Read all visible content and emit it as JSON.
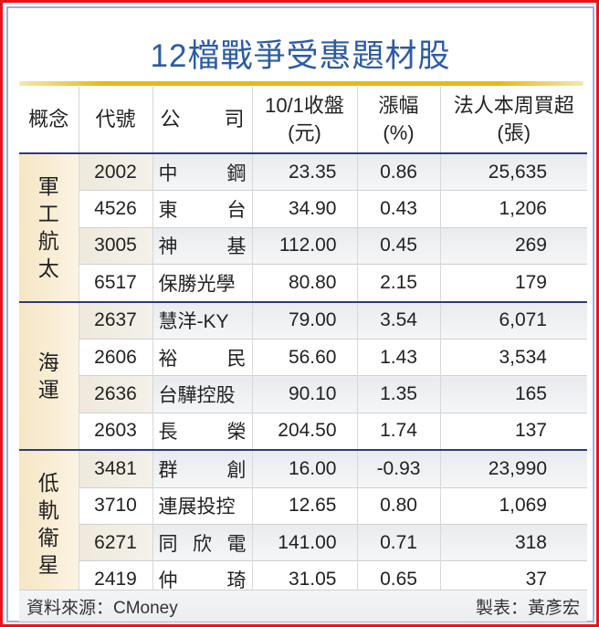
{
  "title": "12檔戰爭受惠題材股",
  "header": {
    "concept": "概念",
    "code": "代號",
    "company_left": "公",
    "company_right": "司",
    "close_line1": "10/1收盤",
    "close_line2": "(元)",
    "change_line1": "漲幅",
    "change_line2": "(%)",
    "buy_line1": "法人本周買超",
    "buy_line2": "(張)"
  },
  "groups": [
    {
      "concept": "軍工航太",
      "rows": [
        {
          "code": "2002",
          "company": [
            "中",
            "鋼"
          ],
          "close": "23.35",
          "change": "0.86",
          "buy": "25,635"
        },
        {
          "code": "4526",
          "company": [
            "東",
            "台"
          ],
          "close": "34.90",
          "change": "0.43",
          "buy": "1,206"
        },
        {
          "code": "3005",
          "company": [
            "神",
            "基"
          ],
          "close": "112.00",
          "change": "0.45",
          "buy": "269"
        },
        {
          "code": "6517",
          "company": [
            "保勝光學"
          ],
          "close": "80.80",
          "change": "2.15",
          "buy": "179"
        }
      ]
    },
    {
      "concept": "海運",
      "rows": [
        {
          "code": "2637",
          "company": [
            "慧洋-KY"
          ],
          "close": "79.00",
          "change": "3.54",
          "buy": "6,071"
        },
        {
          "code": "2606",
          "company": [
            "裕",
            "民"
          ],
          "close": "56.60",
          "change": "1.43",
          "buy": "3,534"
        },
        {
          "code": "2636",
          "company": [
            "台驊控股"
          ],
          "close": "90.10",
          "change": "1.35",
          "buy": "165"
        },
        {
          "code": "2603",
          "company": [
            "長",
            "榮"
          ],
          "close": "204.50",
          "change": "1.74",
          "buy": "137"
        }
      ]
    },
    {
      "concept": "低軌衛星",
      "rows": [
        {
          "code": "3481",
          "company": [
            "群",
            "創"
          ],
          "close": "16.00",
          "change": "-0.93",
          "buy": "23,990"
        },
        {
          "code": "3710",
          "company": [
            "連展投控"
          ],
          "close": "12.65",
          "change": "0.80",
          "buy": "1,069"
        },
        {
          "code": "6271",
          "company": [
            "同",
            "欣",
            "電"
          ],
          "close": "141.00",
          "change": "0.71",
          "buy": "318"
        },
        {
          "code": "2419",
          "company": [
            "仲",
            "琦"
          ],
          "close": "31.05",
          "change": "0.65",
          "buy": "37"
        }
      ]
    }
  ],
  "footer": {
    "source": "資料來源：CMoney",
    "author": "製表：黃彥宏"
  },
  "colors": {
    "title": "#2b5ba6",
    "outer_border": "#e8141b",
    "group_divider": "#2c3a80",
    "gold_line": "#e8b81a"
  }
}
